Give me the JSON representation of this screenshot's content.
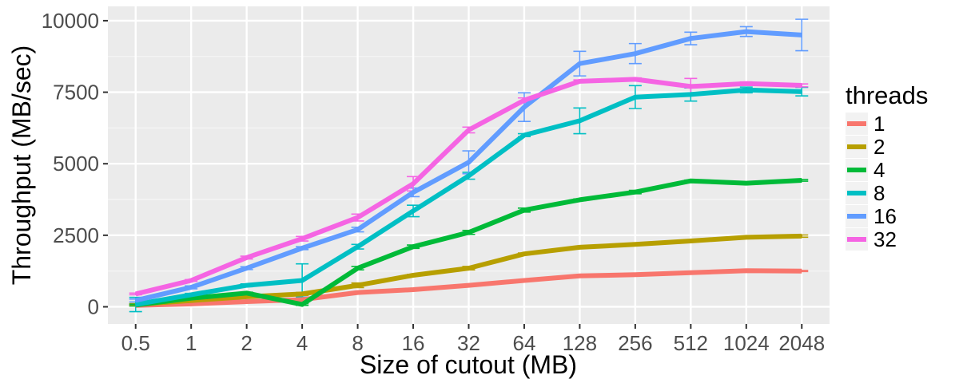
{
  "chart_data": {
    "type": "line",
    "xlabel": "Size of cutout (MB)",
    "ylabel": "Throughput (MB/sec)",
    "categories": [
      "0.5",
      "1",
      "2",
      "4",
      "8",
      "16",
      "32",
      "64",
      "128",
      "256",
      "512",
      "1024",
      "2048"
    ],
    "y_ticks": [
      "0",
      "2500",
      "5000",
      "7500",
      "10000"
    ],
    "ylim": [
      -600,
      10500
    ],
    "grid": true,
    "error_bars": true,
    "legend": {
      "title": "threads",
      "position": "right"
    },
    "series": [
      {
        "name": "1",
        "color": "#F8766D",
        "values": [
          50,
          100,
          180,
          250,
          500,
          600,
          750,
          920,
          1080,
          1120,
          1190,
          1260,
          1250
        ],
        "errors": [
          20,
          20,
          20,
          20,
          20,
          20,
          20,
          20,
          20,
          20,
          20,
          20,
          20
        ]
      },
      {
        "name": "2",
        "color": "#B79F00",
        "values": [
          80,
          220,
          350,
          450,
          750,
          1100,
          1350,
          1850,
          2080,
          2180,
          2300,
          2430,
          2470
        ],
        "errors": [
          30,
          20,
          30,
          50,
          80,
          30,
          60,
          30,
          30,
          30,
          30,
          30,
          40
        ]
      },
      {
        "name": "4",
        "color": "#00BA38",
        "values": [
          60,
          300,
          480,
          80,
          1350,
          2100,
          2600,
          3380,
          3740,
          4010,
          4400,
          4320,
          4420
        ],
        "errors": [
          30,
          30,
          30,
          30,
          60,
          60,
          70,
          70,
          30,
          60,
          30,
          30,
          30
        ]
      },
      {
        "name": "8",
        "color": "#00BFC4",
        "values": [
          80,
          420,
          750,
          920,
          2100,
          3350,
          4580,
          6000,
          6500,
          7330,
          7420,
          7580,
          7520
        ],
        "errors": [
          250,
          50,
          50,
          580,
          80,
          200,
          120,
          50,
          450,
          400,
          230,
          100,
          150
        ]
      },
      {
        "name": "16",
        "color": "#619CFF",
        "values": [
          220,
          680,
          1350,
          2050,
          2700,
          4000,
          5050,
          6980,
          8500,
          8850,
          9380,
          9620,
          9500
        ],
        "errors": [
          50,
          50,
          50,
          50,
          80,
          150,
          400,
          500,
          430,
          350,
          220,
          170,
          550
        ]
      },
      {
        "name": "32",
        "color": "#F564E3",
        "values": [
          450,
          920,
          1720,
          2380,
          3120,
          4300,
          6180,
          7220,
          7880,
          7950,
          7700,
          7800,
          7740
        ],
        "errors": [
          30,
          30,
          50,
          80,
          120,
          250,
          100,
          80,
          50,
          50,
          280,
          60,
          50
        ]
      }
    ]
  }
}
